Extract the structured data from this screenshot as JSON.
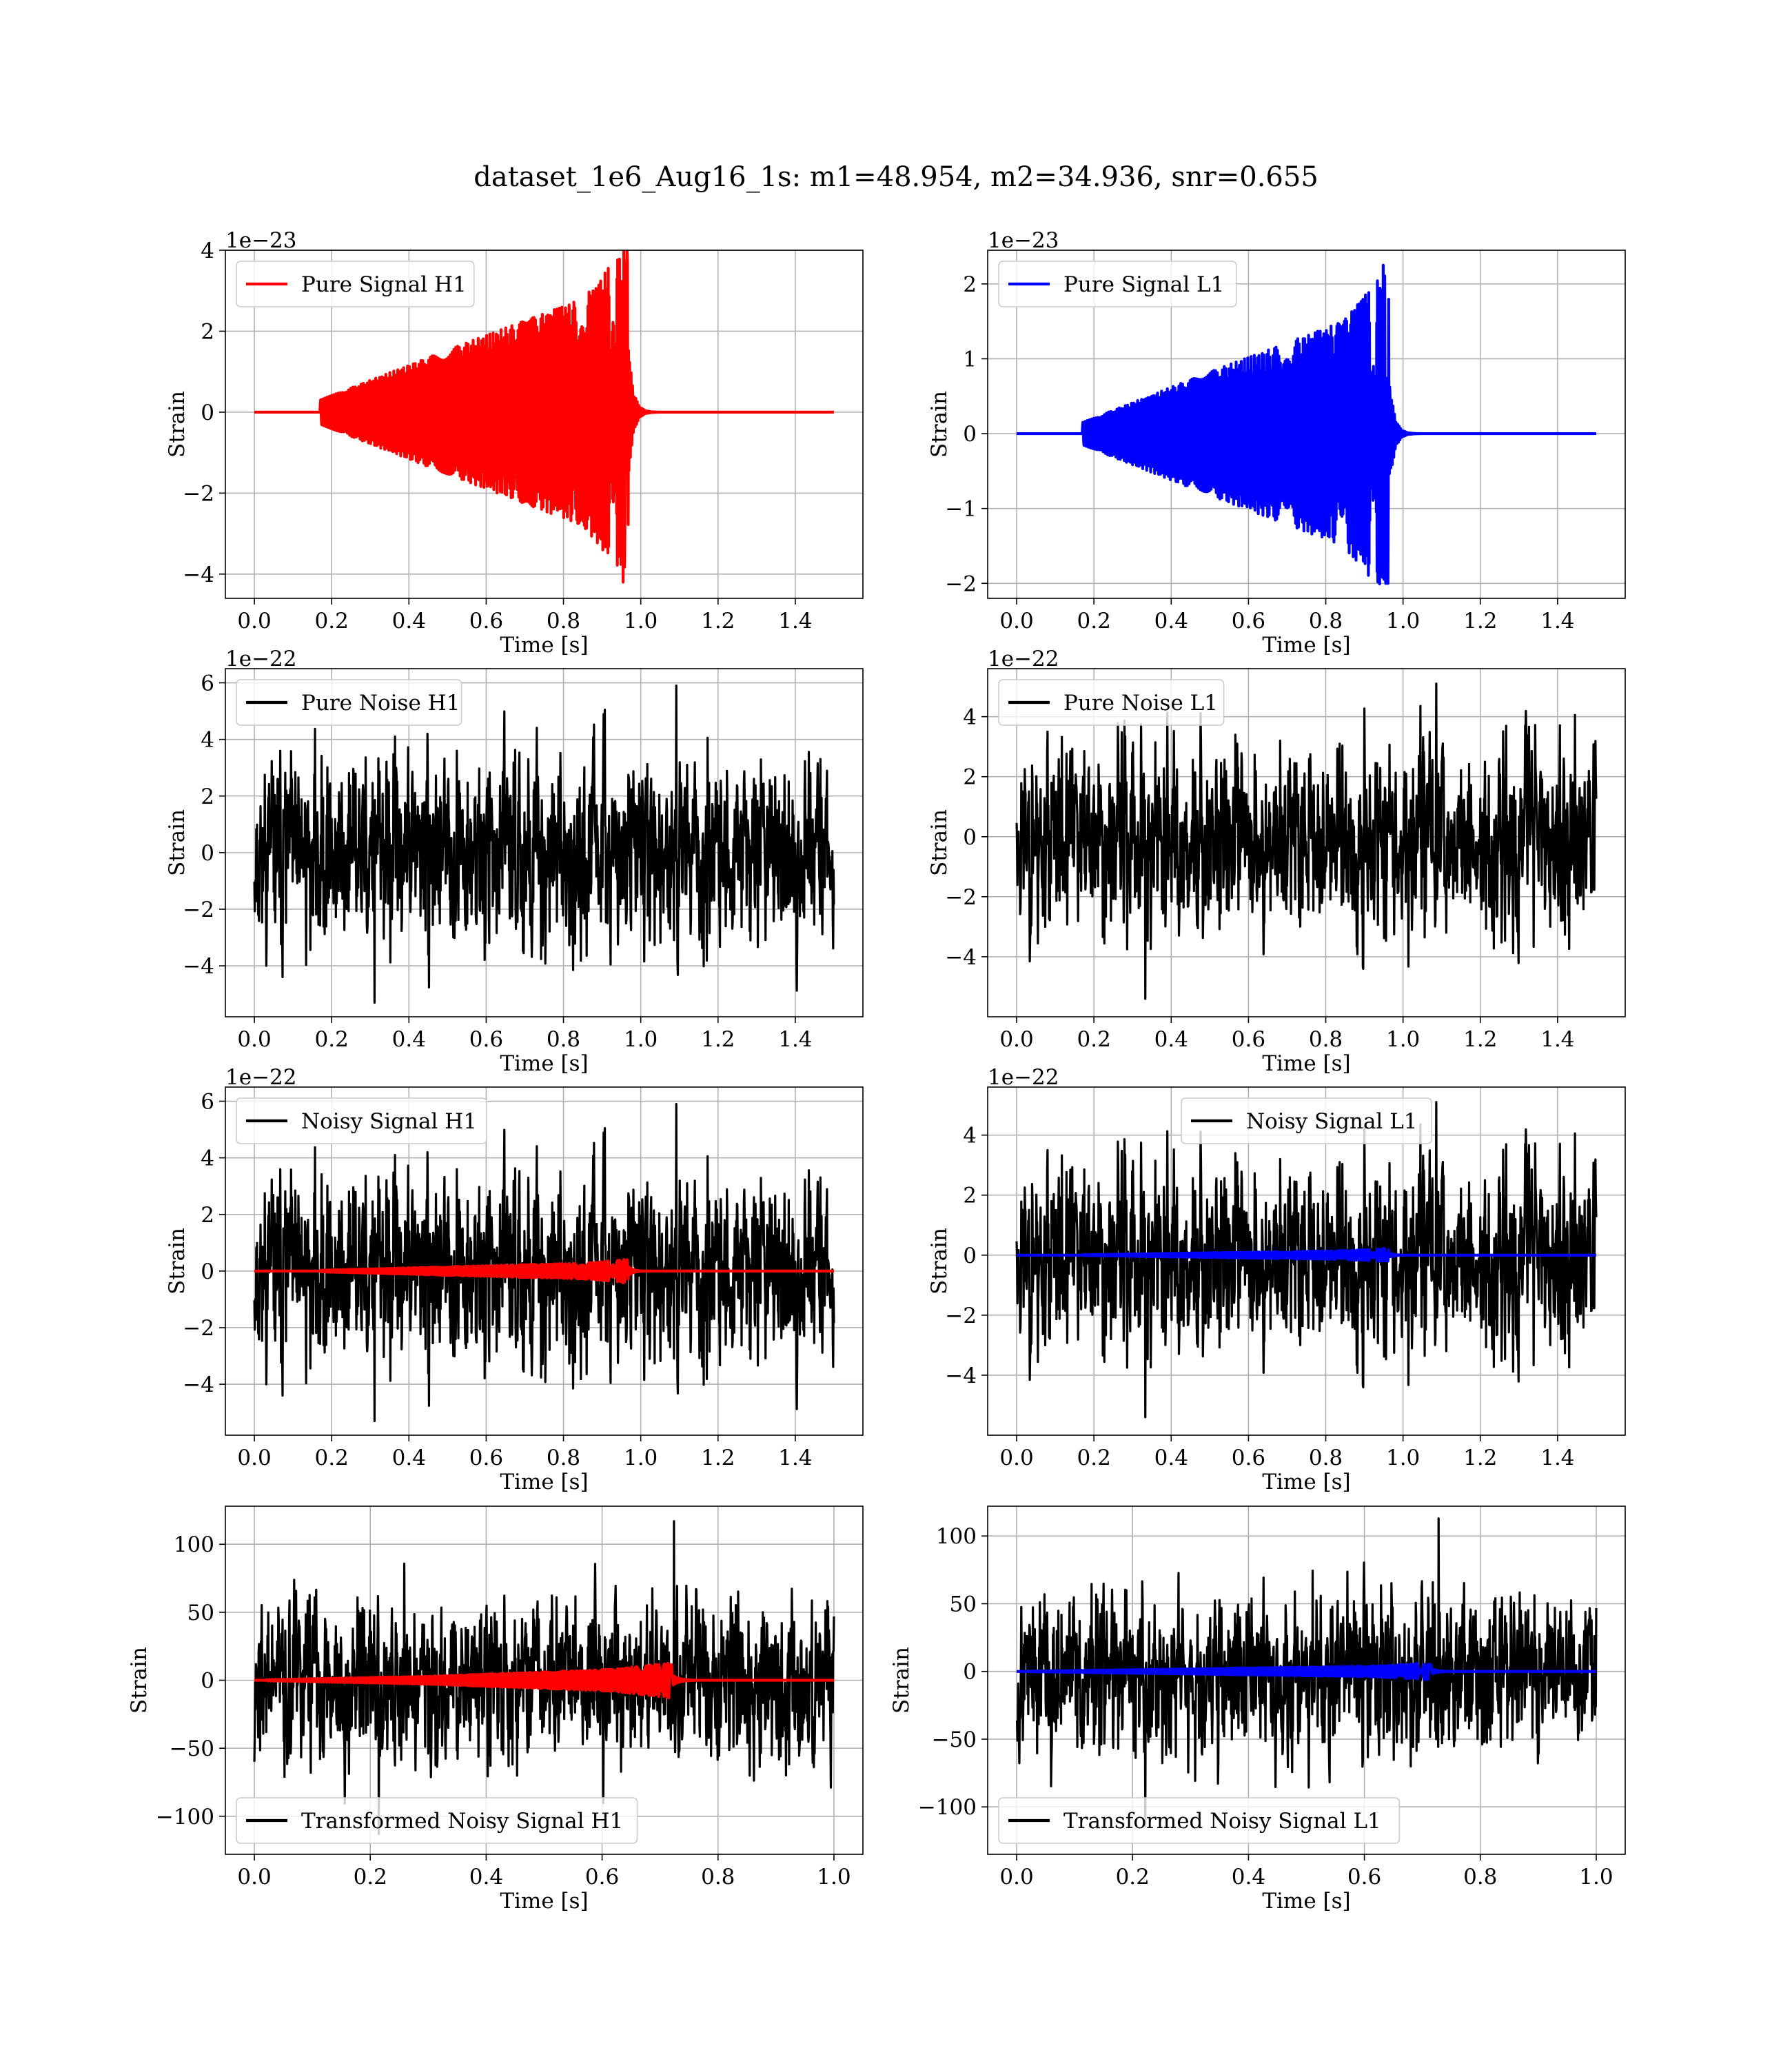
{
  "figure": {
    "title": "dataset_1e6_Aug16_1s: m1=48.954, m2=34.936, snr=0.655"
  },
  "chart_data": [
    {
      "id": "pure-signal-h1",
      "type": "line",
      "xlabel": "Time [s]",
      "ylabel": "Strain",
      "offset_text": "1e−23",
      "xlim": [
        -0.075,
        1.575
      ],
      "ylim": [
        -4.6,
        4.0
      ],
      "xticks": [
        0.0,
        0.2,
        0.4,
        0.6,
        0.8,
        1.0,
        1.2,
        1.4
      ],
      "xtick_labels": [
        "0.0",
        "0.2",
        "0.4",
        "0.6",
        "0.8",
        "1.0",
        "1.2",
        "1.4"
      ],
      "yticks": [
        -4,
        -2,
        0,
        2,
        4
      ],
      "ytick_labels": [
        "−4",
        "−2",
        "0",
        "2",
        "4"
      ],
      "grid": true,
      "legend_position": "upper-left",
      "series": [
        {
          "name": "Pure Signal H1",
          "color": "#ff0000",
          "kind": "chirp",
          "x_end": 1.5,
          "merger": 0.97,
          "start": 0.17,
          "peak_pos": 3.65,
          "peak_neg": -4.2,
          "amp_early": 0.3,
          "amp_mid": 1.5,
          "amp_late": 2.8,
          "in_legend": true
        }
      ]
    },
    {
      "id": "pure-signal-l1",
      "type": "line",
      "xlabel": "Time [s]",
      "ylabel": "Strain",
      "offset_text": "1e−23",
      "xlim": [
        -0.075,
        1.575
      ],
      "ylim": [
        -2.2,
        2.45
      ],
      "xticks": [
        0.0,
        0.2,
        0.4,
        0.6,
        0.8,
        1.0,
        1.2,
        1.4
      ],
      "xtick_labels": [
        "0.0",
        "0.2",
        "0.4",
        "0.6",
        "0.8",
        "1.0",
        "1.2",
        "1.4"
      ],
      "yticks": [
        -2,
        -1,
        0,
        1,
        2
      ],
      "ytick_labels": [
        "−2",
        "−1",
        "0",
        "1",
        "2"
      ],
      "grid": true,
      "legend_position": "upper-left",
      "series": [
        {
          "name": "Pure Signal L1",
          "color": "#0000ff",
          "kind": "chirp",
          "x_end": 1.5,
          "merger": 0.965,
          "start": 0.17,
          "peak_pos": 2.25,
          "peak_neg": -2.0,
          "amp_early": 0.15,
          "amp_mid": 0.8,
          "amp_late": 1.5,
          "in_legend": true
        }
      ]
    },
    {
      "id": "pure-noise-h1",
      "type": "line",
      "xlabel": "Time [s]",
      "ylabel": "Strain",
      "offset_text": "1e−22",
      "xlim": [
        -0.075,
        1.575
      ],
      "ylim": [
        -5.8,
        6.5
      ],
      "xticks": [
        0.0,
        0.2,
        0.4,
        0.6,
        0.8,
        1.0,
        1.2,
        1.4
      ],
      "xtick_labels": [
        "0.0",
        "0.2",
        "0.4",
        "0.6",
        "0.8",
        "1.0",
        "1.2",
        "1.4"
      ],
      "yticks": [
        -4,
        -2,
        0,
        2,
        4,
        6
      ],
      "ytick_labels": [
        "−4",
        "−2",
        "0",
        "2",
        "4",
        "6"
      ],
      "grid": true,
      "legend_position": "upper-left",
      "series": [
        {
          "name": "Pure Noise H1",
          "color": "#000000",
          "kind": "noise",
          "x_end": 1.5,
          "seed": 11,
          "sigma": 1.55,
          "max": 5.9,
          "min": -5.3,
          "in_legend": true
        }
      ]
    },
    {
      "id": "pure-noise-l1",
      "type": "line",
      "xlabel": "Time [s]",
      "ylabel": "Strain",
      "offset_text": "1e−22",
      "xlim": [
        -0.075,
        1.575
      ],
      "ylim": [
        -6.0,
        5.6
      ],
      "xticks": [
        0.0,
        0.2,
        0.4,
        0.6,
        0.8,
        1.0,
        1.2,
        1.4
      ],
      "xtick_labels": [
        "0.0",
        "0.2",
        "0.4",
        "0.6",
        "0.8",
        "1.0",
        "1.2",
        "1.4"
      ],
      "yticks": [
        -4,
        -2,
        0,
        2,
        4
      ],
      "ytick_labels": [
        "−4",
        "−2",
        "0",
        "2",
        "4"
      ],
      "grid": true,
      "legend_position": "upper-left",
      "series": [
        {
          "name": "Pure Noise L1",
          "color": "#000000",
          "kind": "noise",
          "x_end": 1.5,
          "seed": 23,
          "sigma": 1.5,
          "max": 5.1,
          "min": -5.4,
          "in_legend": true
        }
      ]
    },
    {
      "id": "noisy-signal-h1",
      "type": "line",
      "xlabel": "Time [s]",
      "ylabel": "Strain",
      "offset_text": "1e−22",
      "xlim": [
        -0.075,
        1.575
      ],
      "ylim": [
        -5.8,
        6.5
      ],
      "xticks": [
        0.0,
        0.2,
        0.4,
        0.6,
        0.8,
        1.0,
        1.2,
        1.4
      ],
      "xtick_labels": [
        "0.0",
        "0.2",
        "0.4",
        "0.6",
        "0.8",
        "1.0",
        "1.2",
        "1.4"
      ],
      "yticks": [
        -4,
        -2,
        0,
        2,
        4,
        6
      ],
      "ytick_labels": [
        "−4",
        "−2",
        "0",
        "2",
        "4",
        "6"
      ],
      "grid": true,
      "legend_position": "upper-left",
      "series": [
        {
          "name": "Noisy Signal H1",
          "color": "#000000",
          "kind": "noise",
          "x_end": 1.5,
          "seed": 11,
          "sigma": 1.55,
          "max": 5.9,
          "min": -5.3,
          "in_legend": true
        },
        {
          "name": "",
          "color": "#ff0000",
          "kind": "chirp",
          "x_end": 1.5,
          "merger": 0.97,
          "start": 0.17,
          "peak_pos": 0.37,
          "peak_neg": -0.42,
          "amp_early": 0.03,
          "amp_mid": 0.15,
          "amp_late": 0.28,
          "in_legend": false
        }
      ]
    },
    {
      "id": "noisy-signal-l1",
      "type": "line",
      "xlabel": "Time [s]",
      "ylabel": "Strain",
      "offset_text": "1e−22",
      "xlim": [
        -0.075,
        1.575
      ],
      "ylim": [
        -6.0,
        5.6
      ],
      "xticks": [
        0.0,
        0.2,
        0.4,
        0.6,
        0.8,
        1.0,
        1.2,
        1.4
      ],
      "xtick_labels": [
        "0.0",
        "0.2",
        "0.4",
        "0.6",
        "0.8",
        "1.0",
        "1.2",
        "1.4"
      ],
      "yticks": [
        -4,
        -2,
        0,
        2,
        4
      ],
      "ytick_labels": [
        "−4",
        "−2",
        "0",
        "2",
        "4"
      ],
      "grid": true,
      "legend_position": "upper-center",
      "series": [
        {
          "name": "Noisy Signal L1",
          "color": "#000000",
          "kind": "noise",
          "x_end": 1.5,
          "seed": 23,
          "sigma": 1.5,
          "max": 5.1,
          "min": -5.4,
          "in_legend": true
        },
        {
          "name": "",
          "color": "#0000ff",
          "kind": "chirp",
          "x_end": 1.5,
          "merger": 0.965,
          "start": 0.17,
          "peak_pos": 0.22,
          "peak_neg": -0.2,
          "amp_early": 0.015,
          "amp_mid": 0.08,
          "amp_late": 0.15,
          "in_legend": false
        }
      ]
    },
    {
      "id": "transformed-noisy-signal-h1",
      "type": "line",
      "xlabel": "Time [s]",
      "ylabel": "Strain",
      "offset_text": "",
      "xlim": [
        -0.05,
        1.05
      ],
      "ylim": [
        -128,
        128
      ],
      "xticks": [
        0.0,
        0.2,
        0.4,
        0.6,
        0.8,
        1.0
      ],
      "xtick_labels": [
        "0.0",
        "0.2",
        "0.4",
        "0.6",
        "0.8",
        "1.0"
      ],
      "yticks": [
        -100,
        -50,
        0,
        50,
        100
      ],
      "ytick_labels": [
        "−100",
        "−50",
        "0",
        "50",
        "100"
      ],
      "grid": true,
      "legend_position": "lower-left",
      "series": [
        {
          "name": "Transformed Noisy Signal H1",
          "color": "#000000",
          "kind": "noise",
          "x_end": 1.0,
          "seed": 37,
          "sigma": 28,
          "max": 117,
          "min": -113,
          "in_legend": true
        },
        {
          "name": "",
          "color": "#ff0000",
          "kind": "chirp",
          "x_end": 1.0,
          "merger": 0.72,
          "start": 0.02,
          "peak_pos": 12,
          "peak_neg": -13,
          "amp_early": 0.5,
          "amp_mid": 3,
          "amp_late": 8,
          "in_legend": false
        }
      ]
    },
    {
      "id": "transformed-noisy-signal-l1",
      "type": "line",
      "xlabel": "Time [s]",
      "ylabel": "Strain",
      "offset_text": "",
      "xlim": [
        -0.05,
        1.05
      ],
      "ylim": [
        -135,
        122
      ],
      "xticks": [
        0.0,
        0.2,
        0.4,
        0.6,
        0.8,
        1.0
      ],
      "xtick_labels": [
        "0.0",
        "0.2",
        "0.4",
        "0.6",
        "0.8",
        "1.0"
      ],
      "yticks": [
        -100,
        -50,
        0,
        50,
        100
      ],
      "ytick_labels": [
        "−100",
        "−50",
        "0",
        "50",
        "100"
      ],
      "grid": true,
      "legend_position": "lower-left",
      "series": [
        {
          "name": "Transformed Noisy Signal L1",
          "color": "#000000",
          "kind": "noise",
          "x_end": 1.0,
          "seed": 53,
          "sigma": 28,
          "max": 113,
          "min": -114,
          "in_legend": true
        },
        {
          "name": "",
          "color": "#0000ff",
          "kind": "chirp",
          "x_end": 1.0,
          "merger": 0.715,
          "start": 0.02,
          "peak_pos": 6,
          "peak_neg": -6,
          "amp_early": 0.3,
          "amp_mid": 2,
          "amp_late": 4,
          "in_legend": false
        }
      ]
    }
  ]
}
